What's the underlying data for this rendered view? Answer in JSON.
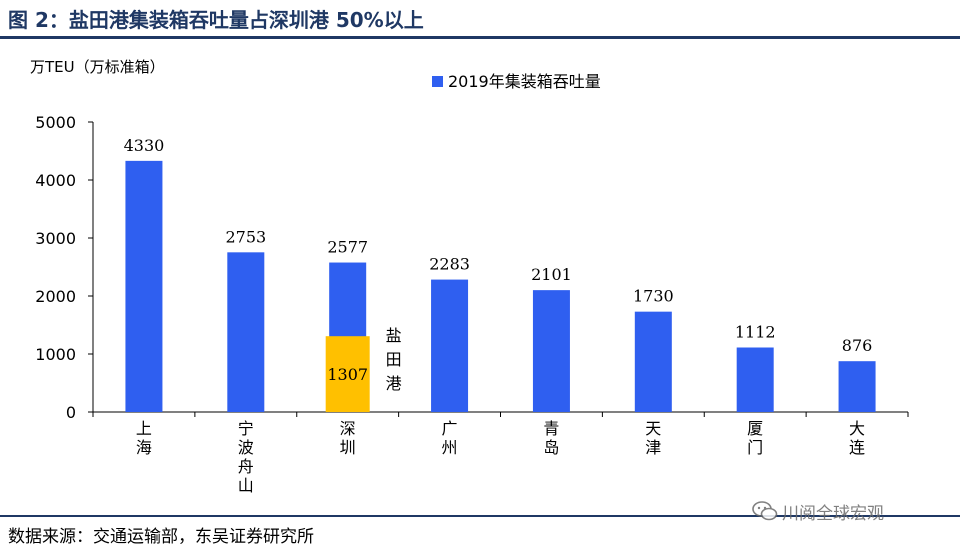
{
  "figure": {
    "title": "图 2：盐田港集装箱吞吐量占深圳港 50%以上",
    "source": "数据来源：交通运输部，东吴证券研究所",
    "watermark": "川阅全球宏观"
  },
  "chart_data": {
    "type": "bar",
    "ylabel": "万TEU（万标准箱）",
    "ylim": [
      0,
      5000
    ],
    "yticks": [
      0,
      1000,
      2000,
      3000,
      4000,
      5000
    ],
    "categories": [
      [
        "上",
        "海"
      ],
      [
        "宁",
        "波",
        "舟",
        "山"
      ],
      [
        "深",
        "圳"
      ],
      [
        "广",
        "州"
      ],
      [
        "青",
        "岛"
      ],
      [
        "天",
        "津"
      ],
      [
        "厦",
        "门"
      ],
      [
        "大",
        "连"
      ]
    ],
    "series": [
      {
        "name": "2019年集装箱吞吐量",
        "color": "#2f5ff0",
        "values": [
          4330,
          2753,
          2577,
          2283,
          2101,
          1730,
          1112,
          876
        ]
      }
    ],
    "overlay": {
      "category_index": 2,
      "value": 1307,
      "label": [
        "盐",
        "田",
        "港"
      ],
      "color": "#ffc000"
    },
    "legend_position": "top-center",
    "grid": false
  }
}
